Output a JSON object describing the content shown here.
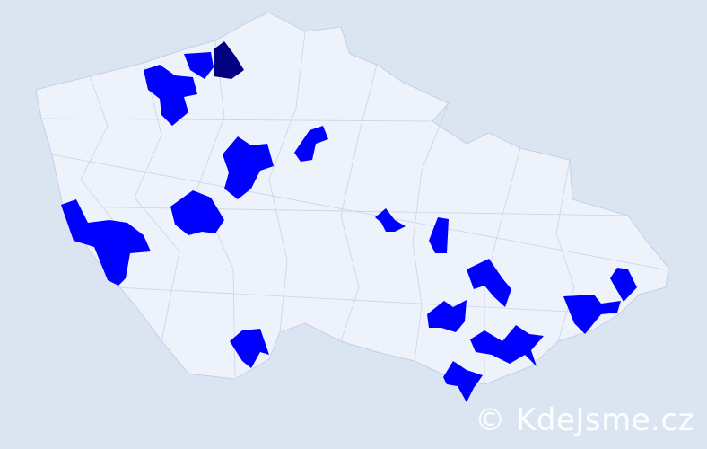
{
  "map": {
    "background_color": "#dbe5f2",
    "land_color": "#eef2fa",
    "border_color": "#c5cfe6",
    "highlight_color": "#0000ff",
    "highlight_dark_color": "#000080"
  },
  "watermark": {
    "text": "© KdeJsme.cz"
  }
}
